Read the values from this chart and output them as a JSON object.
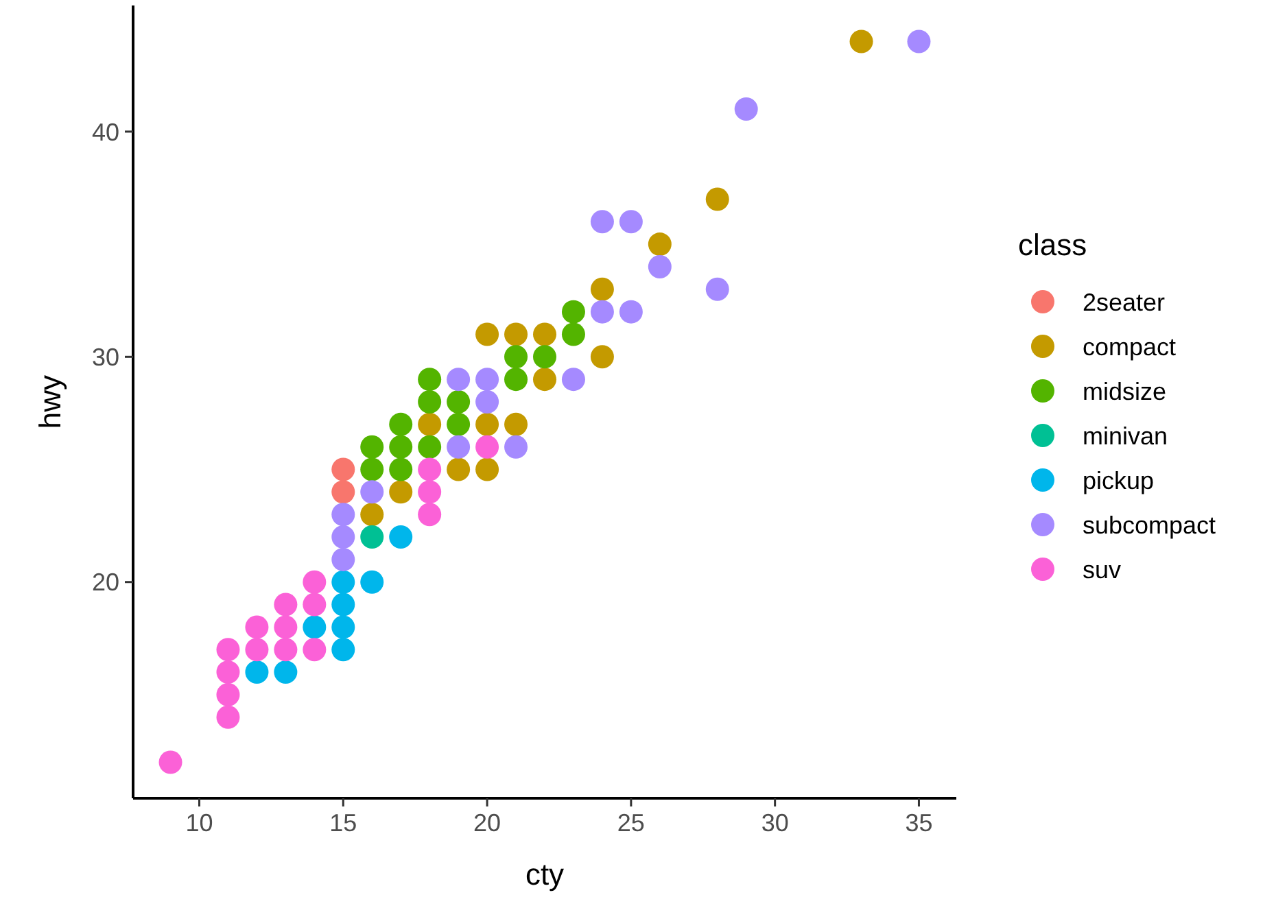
{
  "chart_data": {
    "type": "scatter",
    "xlabel": "cty",
    "ylabel": "hwy",
    "legend_title": "class",
    "legend": "right",
    "marker": "circle",
    "grid": false,
    "xlim": [
      7.7,
      36.3
    ],
    "ylim": [
      10.4,
      45.6
    ],
    "xticks": [
      10,
      15,
      20,
      25,
      30,
      35
    ],
    "yticks": [
      20,
      30,
      40
    ],
    "series": [
      {
        "name": "2seater",
        "color": "#f8766d",
        "x": [
          15,
          15
        ],
        "values": [
          25,
          24
        ]
      },
      {
        "name": "compact",
        "color": "#c49a00",
        "x": [
          16,
          17,
          18,
          19,
          20,
          20,
          20,
          21,
          21,
          22,
          22,
          24,
          24,
          26,
          28,
          33
        ],
        "values": [
          23,
          24,
          27,
          25,
          27,
          25,
          31,
          31,
          27,
          31,
          29,
          33,
          30,
          35,
          37,
          44
        ]
      },
      {
        "name": "midsize",
        "color": "#53b400",
        "x": [
          16,
          16,
          17,
          17,
          17,
          18,
          18,
          18,
          19,
          19,
          21,
          21,
          22,
          23,
          23
        ],
        "values": [
          26,
          25,
          27,
          26,
          25,
          29,
          28,
          26,
          28,
          27,
          30,
          29,
          30,
          32,
          31
        ]
      },
      {
        "name": "minivan",
        "color": "#00c094",
        "x": [
          16
        ],
        "values": [
          22
        ]
      },
      {
        "name": "pickup",
        "color": "#00b6eb",
        "x": [
          12,
          13,
          14,
          15,
          15,
          15,
          15,
          16,
          17
        ],
        "values": [
          16,
          16,
          18,
          20,
          19,
          18,
          17,
          20,
          22
        ]
      },
      {
        "name": "subcompact",
        "color": "#a58aff",
        "x": [
          15,
          15,
          15,
          16,
          19,
          19,
          20,
          20,
          21,
          23,
          24,
          24,
          25,
          25,
          26,
          28,
          29,
          35
        ],
        "values": [
          23,
          22,
          21,
          24,
          29,
          26,
          29,
          28,
          26,
          29,
          36,
          32,
          36,
          32,
          34,
          33,
          41,
          44
        ]
      },
      {
        "name": "suv",
        "color": "#fb61d7",
        "x": [
          9,
          11,
          11,
          11,
          11,
          12,
          12,
          13,
          13,
          13,
          14,
          14,
          14,
          18,
          18,
          18,
          20
        ],
        "values": [
          12,
          17,
          16,
          15,
          14,
          18,
          17,
          19,
          18,
          17,
          20,
          19,
          17,
          25,
          24,
          23,
          26
        ]
      }
    ]
  }
}
